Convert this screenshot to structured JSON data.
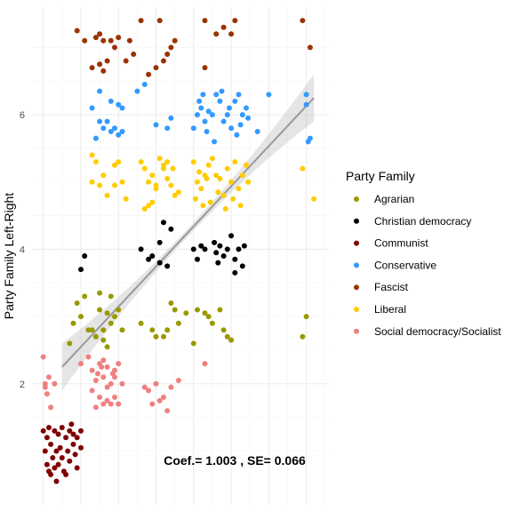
{
  "chart_data": {
    "type": "scatter",
    "title": "",
    "xlabel": "",
    "ylabel": "Party Family Left-Right",
    "ylim": [
      0.2,
      7.6
    ],
    "xlim": [
      -0.3,
      7.6
    ],
    "y_ticks": [
      "2",
      "4",
      "6"
    ],
    "x_ticks": [],
    "grid": true,
    "legend": {
      "title": "Party Family",
      "placement": "right",
      "entries": [
        "Agrarian",
        "Christian democracy",
        "Communist",
        "Conservative",
        "Fascist",
        "Liberal",
        "Social democracy/Socialist"
      ]
    },
    "annotation": "Coef.= 1.003 , SE= 0.066",
    "fit_line": {
      "x": [
        0.5,
        7.2
      ],
      "y": [
        2.25,
        6.25
      ],
      "band_halfwidth_ends": [
        0.35,
        0.35
      ],
      "band_halfwidth_mid": 0.06
    },
    "series": [
      {
        "name": "Agrarian",
        "color": "#999900",
        "points": [
          [
            0.9,
            3.2
          ],
          [
            1.1,
            3.3
          ],
          [
            1.0,
            3.0
          ],
          [
            0.8,
            2.9
          ],
          [
            1.2,
            2.8
          ],
          [
            0.7,
            2.6
          ],
          [
            1.3,
            2.8
          ],
          [
            1.5,
            3.1
          ],
          [
            1.6,
            2.8
          ],
          [
            1.7,
            3.05
          ],
          [
            1.8,
            3.3
          ],
          [
            1.9,
            3.0
          ],
          [
            1.4,
            2.7
          ],
          [
            1.6,
            2.65
          ],
          [
            1.7,
            2.55
          ],
          [
            1.8,
            2.9
          ],
          [
            2.0,
            3.1
          ],
          [
            2.1,
            2.8
          ],
          [
            1.5,
            3.35
          ],
          [
            2.6,
            2.9
          ],
          [
            2.9,
            2.8
          ],
          [
            3.0,
            2.7
          ],
          [
            3.2,
            2.7
          ],
          [
            3.4,
            3.2
          ],
          [
            3.5,
            3.1
          ],
          [
            3.6,
            2.9
          ],
          [
            3.3,
            2.8
          ],
          [
            3.8,
            3.05
          ],
          [
            4.0,
            2.6
          ],
          [
            4.1,
            3.1
          ],
          [
            4.3,
            3.05
          ],
          [
            4.4,
            3.0
          ],
          [
            4.5,
            2.9
          ],
          [
            4.7,
            3.1
          ],
          [
            4.8,
            2.8
          ],
          [
            4.9,
            2.7
          ],
          [
            5.0,
            2.65
          ],
          [
            7.0,
            3.0
          ],
          [
            6.9,
            2.7
          ]
        ]
      },
      {
        "name": "Christian democracy",
        "color": "#000000",
        "points": [
          [
            1.0,
            3.7
          ],
          [
            1.1,
            3.9
          ],
          [
            2.6,
            4.0
          ],
          [
            2.8,
            3.85
          ],
          [
            2.9,
            3.9
          ],
          [
            3.1,
            3.8
          ],
          [
            3.3,
            3.75
          ],
          [
            3.1,
            4.1
          ],
          [
            3.2,
            4.4
          ],
          [
            3.4,
            4.3
          ],
          [
            4.0,
            4.0
          ],
          [
            4.2,
            4.05
          ],
          [
            4.3,
            4.0
          ],
          [
            4.1,
            3.85
          ],
          [
            4.6,
            3.95
          ],
          [
            4.7,
            4.05
          ],
          [
            4.8,
            3.9
          ],
          [
            4.9,
            4.0
          ],
          [
            5.0,
            4.2
          ],
          [
            5.1,
            3.85
          ],
          [
            5.2,
            4.0
          ],
          [
            5.3,
            3.75
          ],
          [
            5.1,
            3.65
          ],
          [
            5.35,
            4.05
          ],
          [
            4.65,
            3.8
          ],
          [
            4.55,
            4.1
          ]
        ]
      },
      {
        "name": "Communist",
        "color": "#800000",
        "points": [
          [
            0.0,
            1.3
          ],
          [
            0.05,
            1.0
          ],
          [
            0.1,
            0.8
          ],
          [
            0.1,
            1.2
          ],
          [
            0.15,
            0.7
          ],
          [
            0.2,
            1.1
          ],
          [
            0.25,
            0.9
          ],
          [
            0.3,
            1.3
          ],
          [
            0.3,
            0.75
          ],
          [
            0.35,
            1.0
          ],
          [
            0.4,
            1.25
          ],
          [
            0.4,
            0.8
          ],
          [
            0.45,
            1.05
          ],
          [
            0.5,
            1.35
          ],
          [
            0.5,
            0.9
          ],
          [
            0.55,
            0.7
          ],
          [
            0.6,
            1.2
          ],
          [
            0.65,
            1.0
          ],
          [
            0.7,
            1.3
          ],
          [
            0.7,
            0.85
          ],
          [
            0.75,
            1.4
          ],
          [
            0.8,
            1.1
          ],
          [
            0.85,
            0.95
          ],
          [
            0.9,
            1.2
          ],
          [
            0.9,
            0.75
          ],
          [
            1.0,
            1.3
          ],
          [
            1.0,
            1.05
          ],
          [
            0.2,
            0.65
          ],
          [
            0.35,
            0.55
          ],
          [
            0.6,
            0.65
          ],
          [
            0.15,
            1.35
          ],
          [
            0.8,
            1.25
          ]
        ]
      },
      {
        "name": "Conservative",
        "color": "#3399ff",
        "points": [
          [
            1.3,
            6.1
          ],
          [
            1.5,
            5.9
          ],
          [
            1.4,
            5.65
          ],
          [
            1.6,
            5.8
          ],
          [
            1.7,
            5.9
          ],
          [
            1.8,
            5.75
          ],
          [
            1.9,
            5.8
          ],
          [
            2.0,
            5.7
          ],
          [
            2.1,
            5.75
          ],
          [
            1.8,
            6.2
          ],
          [
            2.0,
            6.15
          ],
          [
            1.5,
            6.35
          ],
          [
            2.1,
            6.1
          ],
          [
            2.5,
            6.35
          ],
          [
            2.7,
            6.45
          ],
          [
            3.3,
            5.8
          ],
          [
            3.4,
            5.95
          ],
          [
            3.0,
            5.85
          ],
          [
            4.0,
            5.8
          ],
          [
            4.1,
            6.0
          ],
          [
            4.2,
            6.1
          ],
          [
            4.3,
            5.9
          ],
          [
            4.4,
            6.05
          ],
          [
            4.5,
            6.0
          ],
          [
            4.6,
            6.3
          ],
          [
            4.7,
            6.2
          ],
          [
            4.8,
            5.9
          ],
          [
            4.9,
            6.0
          ],
          [
            5.0,
            5.8
          ],
          [
            5.1,
            6.2
          ],
          [
            5.2,
            6.3
          ],
          [
            5.3,
            6.0
          ],
          [
            5.4,
            6.1
          ],
          [
            4.25,
            6.3
          ],
          [
            4.35,
            5.75
          ],
          [
            4.55,
            5.6
          ],
          [
            4.75,
            6.35
          ],
          [
            4.95,
            6.1
          ],
          [
            5.15,
            5.7
          ],
          [
            5.25,
            5.85
          ],
          [
            5.45,
            5.95
          ],
          [
            6.0,
            6.3
          ],
          [
            5.7,
            5.75
          ],
          [
            7.0,
            6.3
          ],
          [
            7.0,
            6.15
          ],
          [
            7.1,
            5.65
          ],
          [
            7.05,
            5.6
          ],
          [
            4.15,
            6.2
          ]
        ]
      },
      {
        "name": "Fascist",
        "color": "#993300",
        "points": [
          [
            0.9,
            7.25
          ],
          [
            1.1,
            7.1
          ],
          [
            1.4,
            7.15
          ],
          [
            1.6,
            7.1
          ],
          [
            1.8,
            7.1
          ],
          [
            2.0,
            7.15
          ],
          [
            2.3,
            7.1
          ],
          [
            2.6,
            7.4
          ],
          [
            3.1,
            7.4
          ],
          [
            3.5,
            7.1
          ],
          [
            1.5,
            7.2
          ],
          [
            1.9,
            7.0
          ],
          [
            1.7,
            6.8
          ],
          [
            2.2,
            6.8
          ],
          [
            2.4,
            6.9
          ],
          [
            3.3,
            6.9
          ],
          [
            3.4,
            7.0
          ],
          [
            3.2,
            6.8
          ],
          [
            3.0,
            6.7
          ],
          [
            2.8,
            6.6
          ],
          [
            1.3,
            6.7
          ],
          [
            1.5,
            6.75
          ],
          [
            1.6,
            6.65
          ],
          [
            4.3,
            7.4
          ],
          [
            4.6,
            7.2
          ],
          [
            4.8,
            7.3
          ],
          [
            5.0,
            7.2
          ],
          [
            5.1,
            7.4
          ],
          [
            4.3,
            6.7
          ],
          [
            6.9,
            7.4
          ],
          [
            7.1,
            7.0
          ]
        ]
      },
      {
        "name": "Liberal",
        "color": "#ffcc00",
        "points": [
          [
            1.3,
            5.4
          ],
          [
            1.4,
            5.3
          ],
          [
            1.3,
            5.0
          ],
          [
            1.5,
            4.95
          ],
          [
            1.6,
            5.1
          ],
          [
            1.9,
            5.25
          ],
          [
            2.0,
            5.3
          ],
          [
            2.1,
            5.0
          ],
          [
            1.9,
            4.95
          ],
          [
            1.7,
            4.8
          ],
          [
            2.2,
            4.75
          ],
          [
            2.6,
            5.3
          ],
          [
            2.7,
            5.2
          ],
          [
            2.8,
            5.0
          ],
          [
            2.9,
            5.1
          ],
          [
            3.0,
            4.9
          ],
          [
            3.1,
            5.35
          ],
          [
            3.2,
            5.25
          ],
          [
            3.3,
            5.05
          ],
          [
            3.4,
            4.95
          ],
          [
            3.5,
            4.8
          ],
          [
            3.6,
            4.85
          ],
          [
            2.7,
            4.6
          ],
          [
            2.8,
            4.65
          ],
          [
            2.9,
            4.7
          ],
          [
            3.0,
            4.95
          ],
          [
            3.2,
            5.2
          ],
          [
            3.3,
            5.3
          ],
          [
            4.0,
            5.3
          ],
          [
            4.1,
            5.0
          ],
          [
            4.2,
            4.9
          ],
          [
            4.3,
            5.1
          ],
          [
            4.4,
            5.25
          ],
          [
            4.5,
            5.35
          ],
          [
            4.6,
            5.1
          ],
          [
            4.7,
            5.05
          ],
          [
            4.8,
            4.8
          ],
          [
            4.9,
            5.2
          ],
          [
            5.0,
            5.0
          ],
          [
            5.1,
            5.3
          ],
          [
            5.2,
            4.9
          ],
          [
            5.3,
            5.1
          ],
          [
            5.4,
            5.25
          ],
          [
            4.05,
            4.75
          ],
          [
            4.25,
            4.65
          ],
          [
            4.45,
            4.7
          ],
          [
            4.65,
            4.85
          ],
          [
            4.85,
            4.6
          ],
          [
            5.05,
            4.75
          ],
          [
            5.25,
            4.65
          ],
          [
            5.45,
            5.0
          ],
          [
            4.15,
            5.15
          ],
          [
            4.35,
            5.05
          ],
          [
            6.9,
            5.2
          ],
          [
            7.2,
            4.75
          ],
          [
            3.45,
            5.2
          ]
        ]
      },
      {
        "name": "Social democracy/Socialist",
        "color": "#f08080",
        "points": [
          [
            0.0,
            2.4
          ],
          [
            0.05,
            2.0
          ],
          [
            0.1,
            1.85
          ],
          [
            0.15,
            2.1
          ],
          [
            0.2,
            1.65
          ],
          [
            0.3,
            2.0
          ],
          [
            0.05,
            1.95
          ],
          [
            1.0,
            2.3
          ],
          [
            1.2,
            2.4
          ],
          [
            1.3,
            2.2
          ],
          [
            1.4,
            2.05
          ],
          [
            1.5,
            2.3
          ],
          [
            1.6,
            2.1
          ],
          [
            1.7,
            2.25
          ],
          [
            1.8,
            2.0
          ],
          [
            1.9,
            2.2
          ],
          [
            2.0,
            2.3
          ],
          [
            2.1,
            2.0
          ],
          [
            1.3,
            1.9
          ],
          [
            1.5,
            1.8
          ],
          [
            1.6,
            1.7
          ],
          [
            1.7,
            1.75
          ],
          [
            1.8,
            1.7
          ],
          [
            1.9,
            1.8
          ],
          [
            1.4,
            1.65
          ],
          [
            2.0,
            1.7
          ],
          [
            1.9,
            2.1
          ],
          [
            1.6,
            2.35
          ],
          [
            1.7,
            1.95
          ],
          [
            1.45,
            2.15
          ],
          [
            2.8,
            1.9
          ],
          [
            2.9,
            1.7
          ],
          [
            3.0,
            2.0
          ],
          [
            3.2,
            1.8
          ],
          [
            3.3,
            1.6
          ],
          [
            3.4,
            1.95
          ],
          [
            3.6,
            2.05
          ],
          [
            2.7,
            1.95
          ],
          [
            3.1,
            1.75
          ],
          [
            4.3,
            2.3
          ],
          [
            1.55,
            2.25
          ],
          [
            1.85,
            2.15
          ]
        ]
      }
    ]
  }
}
